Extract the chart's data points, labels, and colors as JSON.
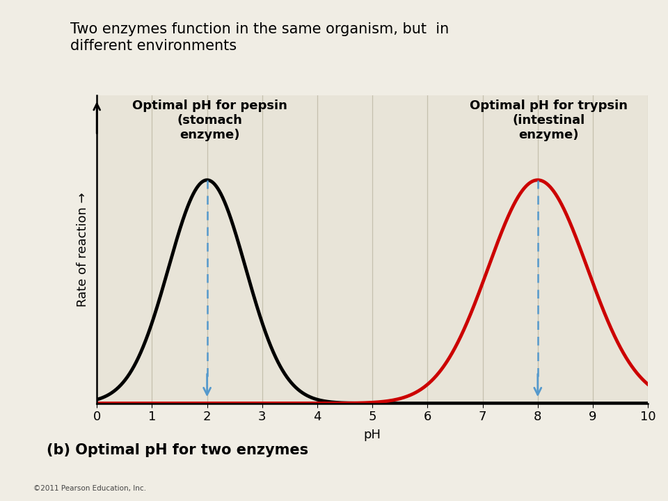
{
  "title_text": "Two enzymes function in the same organism, but  in\ndifferent environments",
  "subtitle": "(b) Optimal pH for two enzymes",
  "xlabel": "pH",
  "ylabel": "Rate of reaction →",
  "background_color": "#e8e4d8",
  "outer_background": "#f0ede4",
  "xlim": [
    0,
    10
  ],
  "xticks": [
    0,
    1,
    2,
    3,
    4,
    5,
    6,
    7,
    8,
    9,
    10
  ],
  "pepsin_mean": 2.0,
  "pepsin_std": 0.7,
  "trypsin_mean": 8.0,
  "trypsin_std": 0.9,
  "pepsin_color": "#000000",
  "trypsin_color": "#cc0000",
  "arrow_color": "#5599cc",
  "pepsin_label": "Optimal pH for pepsin\n(stomach\nenzyme)",
  "trypsin_label": "Optimal pH for trypsin\n(intestinal\nenzyme)",
  "copyright": "©2011 Pearson Education, Inc.",
  "linewidth": 3.5,
  "grid_color": "#c5c0ae",
  "title_fontsize": 15,
  "label_fontsize": 13,
  "tick_fontsize": 13,
  "annotation_fontsize": 13,
  "subtitle_fontsize": 15
}
